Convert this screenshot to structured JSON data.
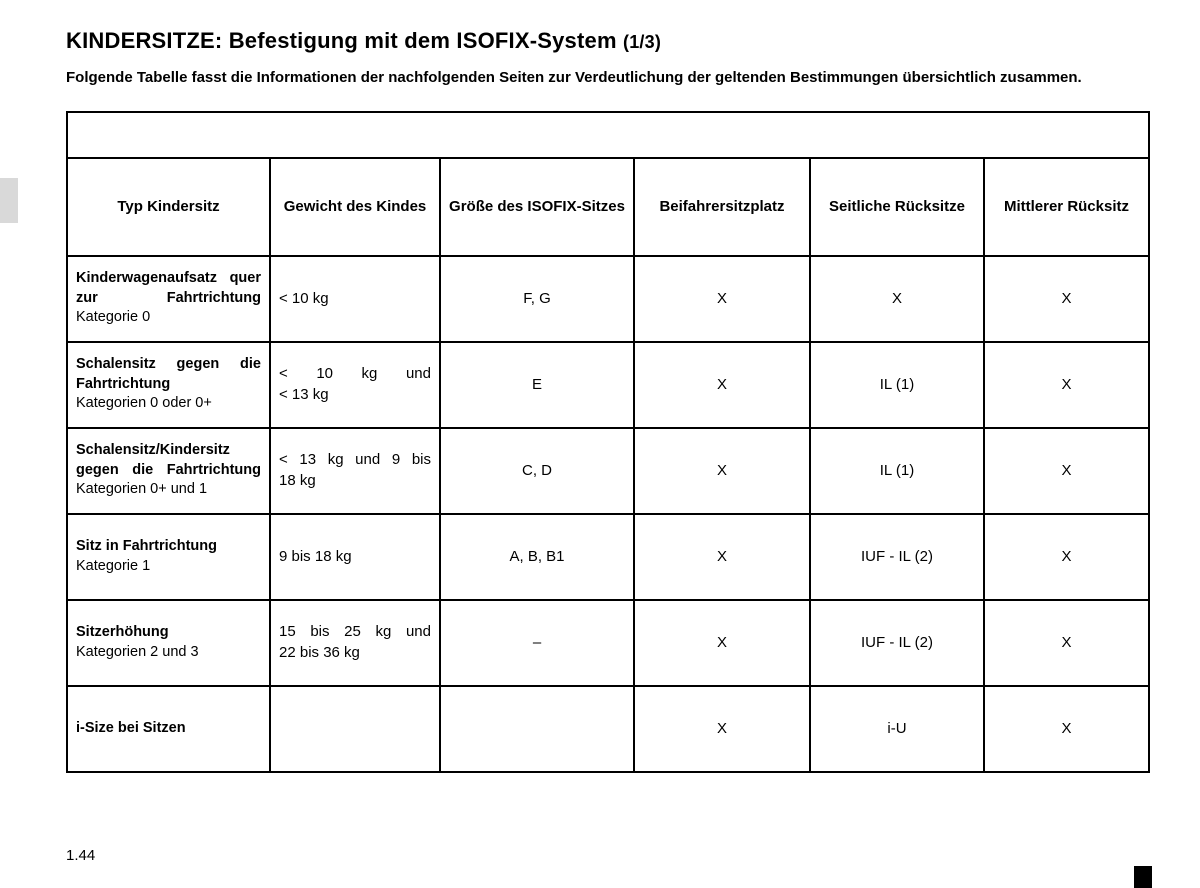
{
  "title_main": "KINDERSITZE: Befestigung mit dem ISOFIX-System",
  "title_suffix": "(1/3)",
  "subtitle": "Folgende Tabelle fasst die Informationen der nachfolgenden Seiten zur Verdeutlichung der geltenden Bestimmungen übersichtlich zusammen.",
  "page_number": "1.44",
  "columns": {
    "c1": "Typ Kindersitz",
    "c2": "Gewicht des Kindes",
    "c3": "Größe des ISOFIX-Sitzes",
    "c4": "Beifahrersitzplatz",
    "c5": "Seitliche Rücksitze",
    "c6": "Mittlerer Rücksitz"
  },
  "rows": [
    {
      "typ_main": "Kinderwagenaufsatz quer zur Fahrtrichtung",
      "typ_cat": "Kategorie 0",
      "weight": "< 10 kg",
      "weight_justify": false,
      "size": "F, G",
      "front": "X",
      "side": "X",
      "mid": "X",
      "typ_justify": true
    },
    {
      "typ_main": "Schalensitz gegen die Fahrtrichtung",
      "typ_cat": "Kategorien 0 oder 0+",
      "weight_l1": "< 10 kg und",
      "weight_l2": "< 13 kg",
      "weight_justify": true,
      "size": "E",
      "front": "X",
      "side": "IL (1)",
      "mid": "X",
      "typ_justify": true
    },
    {
      "typ_main": "Schalensitz/Kindersitz gegen die Fahrtrichtung",
      "typ_cat": "Kategorien 0+ und 1",
      "weight_l1": "< 13 kg und 9 bis",
      "weight_l2": "18 kg",
      "weight_justify": true,
      "size": "C, D",
      "front": "X",
      "side": "IL (1)",
      "mid": "X",
      "typ_justify": true
    },
    {
      "typ_main": "Sitz in Fahrtrichtung",
      "typ_cat": "Kategorie 1",
      "weight": "9 bis 18 kg",
      "weight_justify": false,
      "size": "A, B, B1",
      "front": "X",
      "side": "IUF - IL (2)",
      "mid": "X",
      "typ_justify": false
    },
    {
      "typ_main": "Sitzerhöhung",
      "typ_cat": "Kategorien 2 und 3",
      "weight_l1": "15 bis 25 kg und",
      "weight_l2": "22 bis 36 kg",
      "weight_justify": true,
      "size": "–",
      "front": "X",
      "side": "IUF - IL (2)",
      "mid": "X",
      "typ_justify": false
    },
    {
      "typ_main": "i-Size bei Sitzen",
      "typ_cat": "",
      "weight": "",
      "weight_justify": false,
      "size": "",
      "front": "X",
      "side": "i-U",
      "mid": "X",
      "typ_justify": false
    }
  ]
}
